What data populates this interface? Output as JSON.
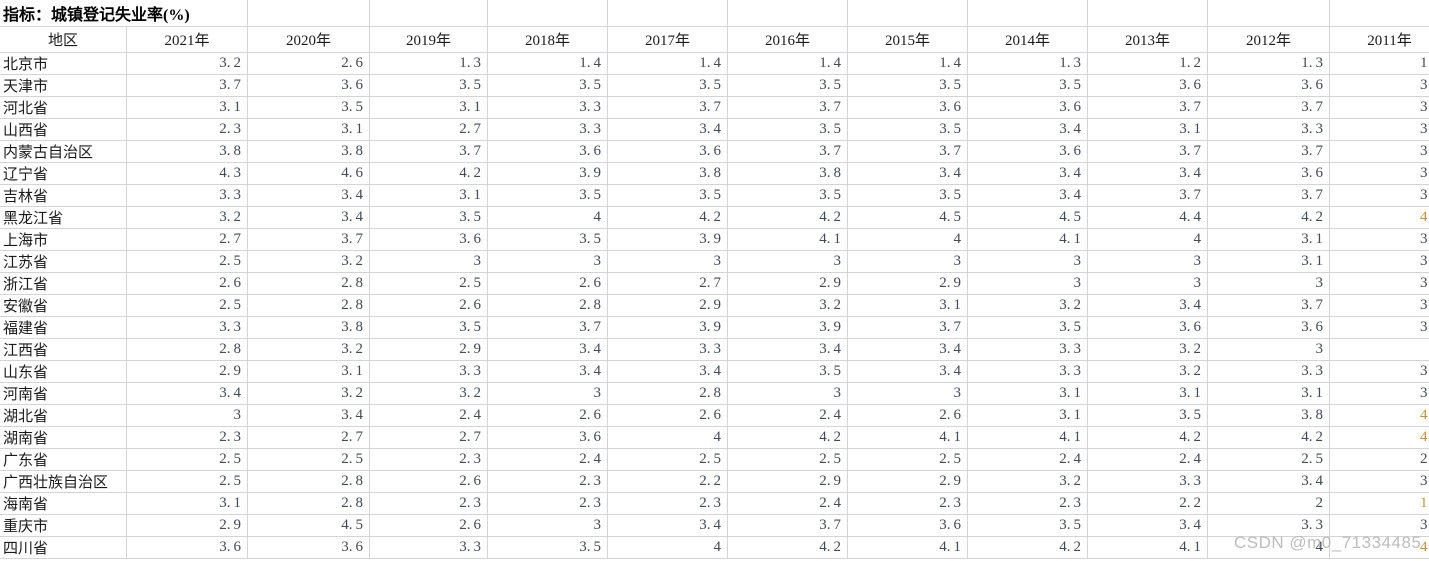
{
  "title": "指标：城镇登记失业率(%)",
  "watermark": "CSDN @m0_71334485",
  "colors": {
    "grid": "#d4d4d4",
    "header_text": "#1a1a1a",
    "region_text": "#1a1a1a",
    "value_text": "#414a57",
    "clipped_accent": "#c2923a",
    "watermark_text": "#b5b5b5",
    "background": "#ffffff"
  },
  "table": {
    "columns": [
      "地区",
      "2021年",
      "2020年",
      "2019年",
      "2018年",
      "2017年",
      "2016年",
      "2015年",
      "2014年",
      "2013年",
      "2012年",
      "2011年"
    ],
    "rows": [
      {
        "region": "北京市",
        "values": [
          "3.2",
          "2.6",
          "1.3",
          "1.4",
          "1.4",
          "1.4",
          "1.4",
          "1.3",
          "1.2",
          "1.3"
        ],
        "value_2011_clipped": "1",
        "clipped_accent": false
      },
      {
        "region": "天津市",
        "values": [
          "3.7",
          "3.6",
          "3.5",
          "3.5",
          "3.5",
          "3.5",
          "3.5",
          "3.5",
          "3.6",
          "3.6"
        ],
        "value_2011_clipped": "3",
        "clipped_accent": false
      },
      {
        "region": "河北省",
        "values": [
          "3.1",
          "3.5",
          "3.1",
          "3.3",
          "3.7",
          "3.7",
          "3.6",
          "3.6",
          "3.7",
          "3.7"
        ],
        "value_2011_clipped": "3",
        "clipped_accent": false
      },
      {
        "region": "山西省",
        "values": [
          "2.3",
          "3.1",
          "2.7",
          "3.3",
          "3.4",
          "3.5",
          "3.5",
          "3.4",
          "3.1",
          "3.3"
        ],
        "value_2011_clipped": "3",
        "clipped_accent": false
      },
      {
        "region": "内蒙古自治区",
        "values": [
          "3.8",
          "3.8",
          "3.7",
          "3.6",
          "3.6",
          "3.7",
          "3.7",
          "3.6",
          "3.7",
          "3.7"
        ],
        "value_2011_clipped": "3",
        "clipped_accent": false
      },
      {
        "region": "辽宁省",
        "values": [
          "4.3",
          "4.6",
          "4.2",
          "3.9",
          "3.8",
          "3.8",
          "3.4",
          "3.4",
          "3.4",
          "3.6"
        ],
        "value_2011_clipped": "3",
        "clipped_accent": false
      },
      {
        "region": "吉林省",
        "values": [
          "3.3",
          "3.4",
          "3.1",
          "3.5",
          "3.5",
          "3.5",
          "3.5",
          "3.4",
          "3.7",
          "3.7"
        ],
        "value_2011_clipped": "3",
        "clipped_accent": false
      },
      {
        "region": "黑龙江省",
        "values": [
          "3.2",
          "3.4",
          "3.5",
          "4",
          "4.2",
          "4.2",
          "4.5",
          "4.5",
          "4.4",
          "4.2"
        ],
        "value_2011_clipped": "4",
        "clipped_accent": true
      },
      {
        "region": "上海市",
        "values": [
          "2.7",
          "3.7",
          "3.6",
          "3.5",
          "3.9",
          "4.1",
          "4",
          "4.1",
          "4",
          "3.1"
        ],
        "value_2011_clipped": "3",
        "clipped_accent": false
      },
      {
        "region": "江苏省",
        "values": [
          "2.5",
          "3.2",
          "3",
          "3",
          "3",
          "3",
          "3",
          "3",
          "3",
          "3.1"
        ],
        "value_2011_clipped": "3",
        "clipped_accent": false
      },
      {
        "region": "浙江省",
        "values": [
          "2.6",
          "2.8",
          "2.5",
          "2.6",
          "2.7",
          "2.9",
          "2.9",
          "3",
          "3",
          "3"
        ],
        "value_2011_clipped": "3",
        "clipped_accent": false
      },
      {
        "region": "安徽省",
        "values": [
          "2.5",
          "2.8",
          "2.6",
          "2.8",
          "2.9",
          "3.2",
          "3.1",
          "3.2",
          "3.4",
          "3.7"
        ],
        "value_2011_clipped": "3",
        "clipped_accent": false
      },
      {
        "region": "福建省",
        "values": [
          "3.3",
          "3.8",
          "3.5",
          "3.7",
          "3.9",
          "3.9",
          "3.7",
          "3.5",
          "3.6",
          "3.6"
        ],
        "value_2011_clipped": "3",
        "clipped_accent": false
      },
      {
        "region": "江西省",
        "values": [
          "2.8",
          "3.2",
          "2.9",
          "3.4",
          "3.3",
          "3.4",
          "3.4",
          "3.3",
          "3.2",
          "3"
        ],
        "value_2011_clipped": "",
        "clipped_accent": false
      },
      {
        "region": "山东省",
        "values": [
          "2.9",
          "3.1",
          "3.3",
          "3.4",
          "3.4",
          "3.5",
          "3.4",
          "3.3",
          "3.2",
          "3.3"
        ],
        "value_2011_clipped": "3",
        "clipped_accent": false
      },
      {
        "region": "河南省",
        "values": [
          "3.4",
          "3.2",
          "3.2",
          "3",
          "2.8",
          "3",
          "3",
          "3.1",
          "3.1",
          "3.1"
        ],
        "value_2011_clipped": "3",
        "clipped_accent": false
      },
      {
        "region": "湖北省",
        "values": [
          "3",
          "3.4",
          "2.4",
          "2.6",
          "2.6",
          "2.4",
          "2.6",
          "3.1",
          "3.5",
          "3.8"
        ],
        "value_2011_clipped": "4",
        "clipped_accent": true
      },
      {
        "region": "湖南省",
        "values": [
          "2.3",
          "2.7",
          "2.7",
          "3.6",
          "4",
          "4.2",
          "4.1",
          "4.1",
          "4.2",
          "4.2"
        ],
        "value_2011_clipped": "4",
        "clipped_accent": true
      },
      {
        "region": "广东省",
        "values": [
          "2.5",
          "2.5",
          "2.3",
          "2.4",
          "2.5",
          "2.5",
          "2.5",
          "2.4",
          "2.4",
          "2.5"
        ],
        "value_2011_clipped": "2",
        "clipped_accent": false
      },
      {
        "region": "广西壮族自治区",
        "values": [
          "2.5",
          "2.8",
          "2.6",
          "2.3",
          "2.2",
          "2.9",
          "2.9",
          "3.2",
          "3.3",
          "3.4"
        ],
        "value_2011_clipped": "3",
        "clipped_accent": false
      },
      {
        "region": "海南省",
        "values": [
          "3.1",
          "2.8",
          "2.3",
          "2.3",
          "2.3",
          "2.4",
          "2.3",
          "2.3",
          "2.2",
          "2"
        ],
        "value_2011_clipped": "1",
        "clipped_accent": true
      },
      {
        "region": "重庆市",
        "values": [
          "2.9",
          "4.5",
          "2.6",
          "3",
          "3.4",
          "3.7",
          "3.6",
          "3.5",
          "3.4",
          "3.3"
        ],
        "value_2011_clipped": "3",
        "clipped_accent": false
      },
      {
        "region": "四川省",
        "values": [
          "3.6",
          "3.6",
          "3.3",
          "3.5",
          "4",
          "4.2",
          "4.1",
          "4.2",
          "4.1",
          "4"
        ],
        "value_2011_clipped": "4",
        "clipped_accent": true
      }
    ]
  }
}
